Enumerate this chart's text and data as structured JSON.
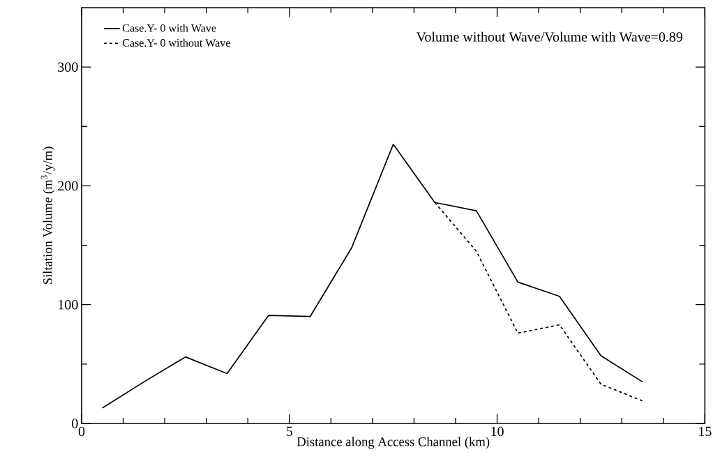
{
  "chart_data": {
    "type": "line",
    "xlabel": "Distance along Access Channel (km)",
    "ylabel": "Siltation Volume (m$^{3}$/y/m)",
    "annotations": [
      "Volume without Wave/Volume with Wave=0.89"
    ],
    "x": [
      0.5,
      1.5,
      2.5,
      3.5,
      4.5,
      5.5,
      6.5,
      7.5,
      8.5,
      9.5,
      10.5,
      11.5,
      12.5,
      13.5
    ],
    "series": [
      {
        "name": "Case.Y- 0 with Wave",
        "color": "#000000",
        "line_style": "solid",
        "values": [
          13,
          35,
          56,
          42,
          91,
          90,
          148,
          235,
          186,
          179,
          119,
          107,
          57,
          35
        ]
      },
      {
        "name": "Case.Y- 0 without Wave",
        "color": "#000000",
        "line_style": "dashed",
        "x": [
          8.5,
          9.5,
          10.5,
          11.5,
          12.5,
          13.5
        ],
        "values": [
          186,
          145,
          76,
          83,
          33,
          19
        ]
      }
    ],
    "xlim": [
      0,
      15
    ],
    "ylim": [
      0,
      350
    ],
    "xticks": [
      0,
      5,
      10,
      15
    ],
    "yticks": [
      0,
      100,
      200,
      300
    ],
    "legend": "top left",
    "grid": false,
    "marker": "none"
  }
}
